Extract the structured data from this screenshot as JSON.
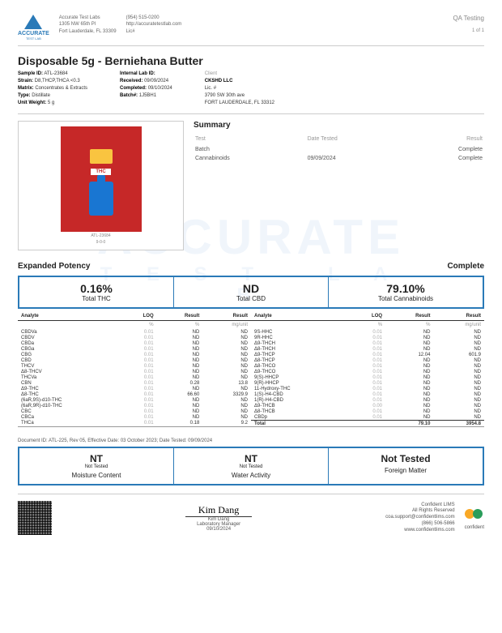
{
  "company": {
    "name": "Accurate Test Labs",
    "addr1": "1305 NW 65th Pl",
    "addr2": "Fort Lauderdale, FL 33309",
    "phone": "(954) 515-0200",
    "web": "http://accuratetestlab.com",
    "lic": "Lic#",
    "logo_text": "ACCURATE",
    "logo_sub": "TEST LAB"
  },
  "header": {
    "qa": "QA Testing",
    "pages": "1 of 1"
  },
  "title": "Disposable 5g - Berniehana Butter",
  "meta": {
    "c1": [
      [
        "Sample ID:",
        "ATL-23684"
      ],
      [
        "Strain:",
        "D8,THCP,THCA <0.3"
      ],
      [
        "Matrix:",
        "Concentrates & Extracts"
      ],
      [
        "Type:",
        "Distillate"
      ],
      [
        "Unit Weight:",
        "5 g"
      ]
    ],
    "c2": [
      [
        "Internal Lab ID:",
        ""
      ],
      [
        "",
        ""
      ],
      [
        "Received:",
        "09/09/2024"
      ],
      [
        "Completed:",
        "09/10/2024"
      ],
      [
        "Batch#:",
        "1J5BH1"
      ]
    ],
    "c3_label": "Client",
    "c3": [
      "CKSHD LLC",
      "Lic. #",
      "3790 SW 30th ave",
      "FORT LAUDERDALE, FL 33312"
    ]
  },
  "photo": {
    "thc": "THC",
    "cap1": "ATL-23684",
    "cap2": "9-0-0"
  },
  "summary": {
    "title": "Summary",
    "cols": [
      "Test",
      "Date Tested",
      "Result"
    ],
    "rows": [
      [
        "Batch",
        "",
        "Complete"
      ],
      [
        "Cannabinoids",
        "09/09/2024",
        "Complete"
      ]
    ]
  },
  "section": {
    "name": "Expanded Potency",
    "status": "Complete"
  },
  "totals": [
    {
      "big": "0.16%",
      "lbl": "Total THC"
    },
    {
      "big": "ND",
      "lbl": "Total CBD"
    },
    {
      "big": "79.10%",
      "lbl": "Total Cannabinoids"
    }
  ],
  "analyte_cols": [
    "Analyte",
    "LOQ",
    "Result",
    "Result"
  ],
  "analyte_units": [
    "",
    "%",
    "%",
    "mg/unit"
  ],
  "left": [
    [
      "CBDVa",
      "0.01",
      "ND",
      "ND"
    ],
    [
      "CBDV",
      "0.01",
      "ND",
      "ND"
    ],
    [
      "CBDa",
      "0.01",
      "ND",
      "ND"
    ],
    [
      "CBGa",
      "0.01",
      "ND",
      "ND"
    ],
    [
      "CBG",
      "0.01",
      "ND",
      "ND"
    ],
    [
      "CBD",
      "0.01",
      "ND",
      "ND"
    ],
    [
      "THCV",
      "0.01",
      "ND",
      "ND"
    ],
    [
      "Δ8-THCV",
      "0.01",
      "ND",
      "ND"
    ],
    [
      "THCVa",
      "0.01",
      "ND",
      "ND"
    ],
    [
      "CBN",
      "0.01",
      "0.28",
      "13.8"
    ],
    [
      "Δ9-THC",
      "0.01",
      "ND",
      "ND"
    ],
    [
      "Δ8-THC",
      "0.01",
      "66.60",
      "3329.9"
    ],
    [
      "(6aR,9S)-d10-THC",
      "0.01",
      "ND",
      "ND"
    ],
    [
      "(6aR,9R)-d10-THC",
      "0.01",
      "ND",
      "ND"
    ],
    [
      "CBC",
      "0.01",
      "ND",
      "ND"
    ],
    [
      "CBCa",
      "0.01",
      "ND",
      "ND"
    ],
    [
      "THCa",
      "0.01",
      "0.18",
      "9.2"
    ]
  ],
  "right": [
    [
      "9S-HHC",
      "0.01",
      "ND",
      "ND"
    ],
    [
      "9R-HHC",
      "0.01",
      "ND",
      "ND"
    ],
    [
      "Δ9-THCH",
      "0.01",
      "ND",
      "ND"
    ],
    [
      "Δ8-THCH",
      "0.01",
      "ND",
      "ND"
    ],
    [
      "Δ9-THCP",
      "0.01",
      "12.04",
      "601.9"
    ],
    [
      "Δ8-THCP",
      "0.01",
      "ND",
      "ND"
    ],
    [
      "Δ8-THCO",
      "0.01",
      "ND",
      "ND"
    ],
    [
      "Δ9-THCO",
      "0.01",
      "ND",
      "ND"
    ],
    [
      "9(S)-HHCP",
      "0.01",
      "ND",
      "ND"
    ],
    [
      "9(R)-HHCP",
      "0.01",
      "ND",
      "ND"
    ],
    [
      "11-Hydroxy-THC",
      "0.01",
      "ND",
      "ND"
    ],
    [
      "1(S)-H4-CBD",
      "0.01",
      "ND",
      "ND"
    ],
    [
      "1(R)-H4-CBD",
      "0.01",
      "ND",
      "ND"
    ],
    [
      "Δ9-THCB",
      "0.00",
      "ND",
      "ND"
    ],
    [
      "Δ8-THCB",
      "0.01",
      "ND",
      "ND"
    ],
    [
      "CBDp",
      "0.01",
      "ND",
      "ND"
    ]
  ],
  "right_total": [
    "Total",
    "",
    "79.10",
    "3954.8"
  ],
  "docid": "Document ID: ATL-225, Rev 05, Effective Date: 03 October 2023; Date Tested: 09/09/2024",
  "nt": [
    {
      "big": "NT",
      "sm": "Not Tested",
      "lbl": "Moisture Content"
    },
    {
      "big": "NT",
      "sm": "Not Tested",
      "lbl": "Water Activity"
    },
    {
      "big": "Not Tested",
      "sm": "",
      "lbl": "Foreign Matter"
    }
  ],
  "sig": {
    "name": "Kim Dang",
    "role": "Laboratory Manager",
    "date": "09/10/2024",
    "script": "Kim Dang"
  },
  "confident": {
    "l1": "Confident LIMS",
    "l2": "All Rights Reserved",
    "l3": "coa.support@confidentlims.com",
    "l4": "(866) 506-5866",
    "l5": "www.confidentlims.com",
    "brand": "confident"
  }
}
